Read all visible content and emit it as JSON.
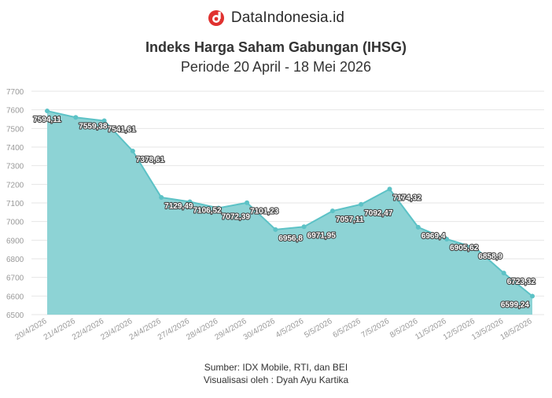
{
  "brand": {
    "name": "DataIndonesia.id",
    "logo_icon": "dataindonesia-logo-icon",
    "logo_color": "#e0312f"
  },
  "chart_data": {
    "type": "area",
    "title": "Indeks Harga Saham Gabungan (IHSG)",
    "subtitle": "Periode 20 April - 18 Mei 2026",
    "categories": [
      "20/4/2026",
      "21/4/2026",
      "22/4/2026",
      "23/4/2026",
      "24/4/2026",
      "27/4/2026",
      "28/4/2026",
      "29/4/2026",
      "30/4/2026",
      "4/5/2026",
      "5/5/2026",
      "6/5/2026",
      "7/5/2026",
      "8/5/2026",
      "11/5/2026",
      "12/5/2026",
      "13/5/2026",
      "18/5/2026"
    ],
    "values": [
      7594.11,
      7559.38,
      7541.61,
      7378.61,
      7129.49,
      7106.52,
      7072.39,
      7101.23,
      6956.8,
      6971.95,
      7057.11,
      7092.47,
      7174.32,
      6969.4,
      6905.62,
      6858.9,
      6723.32,
      6599.24
    ],
    "value_labels": [
      "7594,11",
      "7559,38",
      "7541,61",
      "7378,61",
      "7129,49",
      "7106,52",
      "7072,39",
      "7101,23",
      "6956,8",
      "6971,95",
      "7057,11",
      "7092,47",
      "7174,32",
      "6969,4",
      "6905,62",
      "6858,9",
      "6723,32",
      "6599,24"
    ],
    "yticks": [
      6500,
      6600,
      6700,
      6800,
      6900,
      7000,
      7100,
      7200,
      7300,
      7400,
      7500,
      7600,
      7700
    ],
    "ylim": [
      6500,
      7700
    ],
    "grid": true,
    "legend": "none",
    "colors": {
      "fill": "#8dd3d5",
      "line": "#5cc2c6",
      "point": "#5cc2c6",
      "label_text": "#ffffff",
      "label_stroke": "#444444",
      "grid": "#e6e6e6",
      "tick": "#999999"
    }
  },
  "footer": {
    "source": "Sumber: IDX Mobile, RTI, dan BEI",
    "credit": "Visualisasi oleh : Dyah Ayu Kartika"
  }
}
